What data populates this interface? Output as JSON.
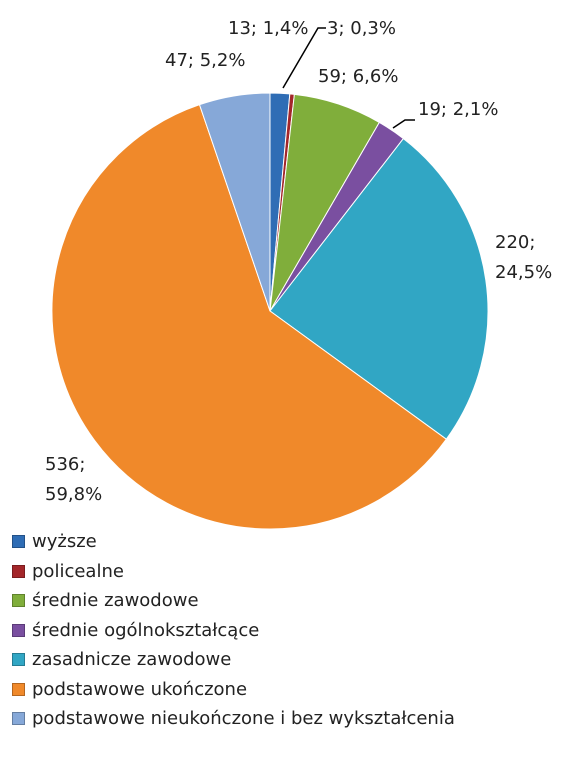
{
  "chart_data": {
    "type": "pie",
    "categories": [
      "wyższe",
      "policealne",
      "średnie zawodowe",
      "średnie ogólnokształcące",
      "zasadnicze zawodowe",
      "podstawowe ukończone",
      "podstawowe nieukończone i bez wykształcenia"
    ],
    "values": [
      13,
      3,
      59,
      19,
      220,
      536,
      47
    ],
    "value_labels": [
      "13; 1,4%",
      "3; 0,3%",
      "59; 6,6%",
      "19; 2,1%",
      "220; 24,5%",
      "536; 59,8%",
      "47; 5,2%"
    ],
    "colors": [
      "#2f6db5",
      "#a3262a",
      "#80ae3b",
      "#7a4fa0",
      "#31a6c4",
      "#f0892a",
      "#86a8d8"
    ],
    "legend": "bottom"
  }
}
